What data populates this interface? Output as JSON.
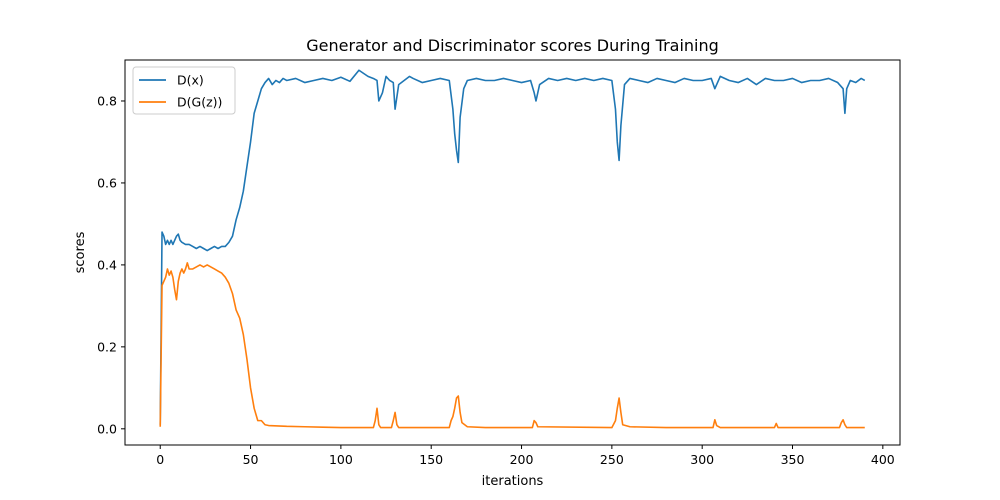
{
  "chart_data": {
    "type": "line",
    "title": "Generator and Discriminator scores During Training",
    "xlabel": "iterations",
    "ylabel": "scores",
    "xlim": [
      -19.5,
      409.5
    ],
    "ylim": [
      -0.0395,
      0.9
    ],
    "x_ticks": [
      0,
      50,
      100,
      150,
      200,
      250,
      300,
      350,
      400
    ],
    "y_ticks": [
      0.0,
      0.2,
      0.4,
      0.6,
      0.8
    ],
    "x_tick_labels": [
      "0",
      "50",
      "100",
      "150",
      "200",
      "250",
      "300",
      "350",
      "400"
    ],
    "y_tick_labels": [
      "0.0",
      "0.2",
      "0.4",
      "0.6",
      "0.8"
    ],
    "grid": false,
    "legend_position": "top-left",
    "series": [
      {
        "name": "D(x)",
        "color": "#1f77b4",
        "points": [
          [
            0,
            0.01
          ],
          [
            1,
            0.48
          ],
          [
            2,
            0.47
          ],
          [
            3,
            0.45
          ],
          [
            4,
            0.46
          ],
          [
            5,
            0.45
          ],
          [
            6,
            0.46
          ],
          [
            7,
            0.45
          ],
          [
            8,
            0.46
          ],
          [
            9,
            0.47
          ],
          [
            10,
            0.475
          ],
          [
            11,
            0.46
          ],
          [
            12,
            0.455
          ],
          [
            14,
            0.45
          ],
          [
            16,
            0.45
          ],
          [
            18,
            0.445
          ],
          [
            20,
            0.44
          ],
          [
            22,
            0.445
          ],
          [
            24,
            0.44
          ],
          [
            26,
            0.435
          ],
          [
            28,
            0.44
          ],
          [
            30,
            0.445
          ],
          [
            32,
            0.44
          ],
          [
            34,
            0.445
          ],
          [
            36,
            0.445
          ],
          [
            38,
            0.455
          ],
          [
            40,
            0.47
          ],
          [
            42,
            0.51
          ],
          [
            44,
            0.54
          ],
          [
            46,
            0.58
          ],
          [
            48,
            0.64
          ],
          [
            50,
            0.7
          ],
          [
            52,
            0.77
          ],
          [
            54,
            0.8
          ],
          [
            56,
            0.83
          ],
          [
            58,
            0.845
          ],
          [
            60,
            0.855
          ],
          [
            62,
            0.84
          ],
          [
            64,
            0.85
          ],
          [
            66,
            0.845
          ],
          [
            68,
            0.855
          ],
          [
            70,
            0.85
          ],
          [
            75,
            0.855
          ],
          [
            80,
            0.845
          ],
          [
            85,
            0.85
          ],
          [
            90,
            0.855
          ],
          [
            95,
            0.85
          ],
          [
            100,
            0.858
          ],
          [
            105,
            0.848
          ],
          [
            110,
            0.875
          ],
          [
            115,
            0.86
          ],
          [
            118,
            0.855
          ],
          [
            120,
            0.85
          ],
          [
            121,
            0.8
          ],
          [
            123,
            0.82
          ],
          [
            125,
            0.86
          ],
          [
            127,
            0.85
          ],
          [
            129,
            0.845
          ],
          [
            130,
            0.78
          ],
          [
            132,
            0.84
          ],
          [
            135,
            0.85
          ],
          [
            138,
            0.86
          ],
          [
            140,
            0.855
          ],
          [
            145,
            0.845
          ],
          [
            150,
            0.85
          ],
          [
            155,
            0.855
          ],
          [
            160,
            0.85
          ],
          [
            162,
            0.78
          ],
          [
            163,
            0.72
          ],
          [
            164,
            0.68
          ],
          [
            165,
            0.65
          ],
          [
            166,
            0.76
          ],
          [
            168,
            0.83
          ],
          [
            170,
            0.85
          ],
          [
            175,
            0.855
          ],
          [
            180,
            0.85
          ],
          [
            185,
            0.85
          ],
          [
            190,
            0.855
          ],
          [
            195,
            0.85
          ],
          [
            200,
            0.845
          ],
          [
            205,
            0.85
          ],
          [
            207,
            0.82
          ],
          [
            208,
            0.8
          ],
          [
            210,
            0.84
          ],
          [
            215,
            0.855
          ],
          [
            220,
            0.85
          ],
          [
            225,
            0.855
          ],
          [
            230,
            0.85
          ],
          [
            235,
            0.855
          ],
          [
            240,
            0.85
          ],
          [
            245,
            0.855
          ],
          [
            250,
            0.85
          ],
          [
            252,
            0.78
          ],
          [
            253,
            0.7
          ],
          [
            254,
            0.655
          ],
          [
            255,
            0.74
          ],
          [
            257,
            0.84
          ],
          [
            260,
            0.855
          ],
          [
            265,
            0.85
          ],
          [
            270,
            0.845
          ],
          [
            275,
            0.855
          ],
          [
            280,
            0.85
          ],
          [
            285,
            0.845
          ],
          [
            290,
            0.855
          ],
          [
            295,
            0.85
          ],
          [
            300,
            0.85
          ],
          [
            305,
            0.855
          ],
          [
            307,
            0.83
          ],
          [
            310,
            0.86
          ],
          [
            315,
            0.85
          ],
          [
            320,
            0.845
          ],
          [
            325,
            0.855
          ],
          [
            330,
            0.84
          ],
          [
            335,
            0.855
          ],
          [
            340,
            0.85
          ],
          [
            345,
            0.85
          ],
          [
            350,
            0.855
          ],
          [
            355,
            0.845
          ],
          [
            360,
            0.85
          ],
          [
            365,
            0.85
          ],
          [
            370,
            0.855
          ],
          [
            375,
            0.845
          ],
          [
            378,
            0.83
          ],
          [
            379,
            0.77
          ],
          [
            380,
            0.83
          ],
          [
            382,
            0.85
          ],
          [
            385,
            0.845
          ],
          [
            388,
            0.855
          ],
          [
            390,
            0.85
          ]
        ]
      },
      {
        "name": "D(G(z))",
        "color": "#ff7f0e",
        "points": [
          [
            0,
            0.005
          ],
          [
            1,
            0.35
          ],
          [
            2,
            0.36
          ],
          [
            3,
            0.37
          ],
          [
            4,
            0.39
          ],
          [
            5,
            0.375
          ],
          [
            6,
            0.385
          ],
          [
            7,
            0.37
          ],
          [
            8,
            0.34
          ],
          [
            9,
            0.315
          ],
          [
            10,
            0.36
          ],
          [
            11,
            0.38
          ],
          [
            12,
            0.39
          ],
          [
            13,
            0.38
          ],
          [
            14,
            0.39
          ],
          [
            15,
            0.405
          ],
          [
            16,
            0.39
          ],
          [
            18,
            0.39
          ],
          [
            20,
            0.395
          ],
          [
            22,
            0.4
          ],
          [
            24,
            0.395
          ],
          [
            26,
            0.4
          ],
          [
            28,
            0.395
          ],
          [
            30,
            0.39
          ],
          [
            32,
            0.385
          ],
          [
            34,
            0.38
          ],
          [
            36,
            0.37
          ],
          [
            38,
            0.355
          ],
          [
            40,
            0.33
          ],
          [
            42,
            0.29
          ],
          [
            44,
            0.27
          ],
          [
            46,
            0.23
          ],
          [
            48,
            0.17
          ],
          [
            50,
            0.1
          ],
          [
            52,
            0.05
          ],
          [
            54,
            0.02
          ],
          [
            56,
            0.02
          ],
          [
            58,
            0.01
          ],
          [
            60,
            0.008
          ],
          [
            65,
            0.007
          ],
          [
            70,
            0.006
          ],
          [
            80,
            0.005
          ],
          [
            90,
            0.004
          ],
          [
            100,
            0.003
          ],
          [
            110,
            0.003
          ],
          [
            118,
            0.003
          ],
          [
            119,
            0.02
          ],
          [
            120,
            0.05
          ],
          [
            121,
            0.01
          ],
          [
            122,
            0.003
          ],
          [
            128,
            0.003
          ],
          [
            129,
            0.02
          ],
          [
            130,
            0.04
          ],
          [
            131,
            0.01
          ],
          [
            132,
            0.003
          ],
          [
            160,
            0.003
          ],
          [
            161,
            0.02
          ],
          [
            162,
            0.03
          ],
          [
            163,
            0.05
          ],
          [
            164,
            0.075
          ],
          [
            165,
            0.08
          ],
          [
            166,
            0.04
          ],
          [
            167,
            0.015
          ],
          [
            170,
            0.005
          ],
          [
            180,
            0.003
          ],
          [
            200,
            0.003
          ],
          [
            206,
            0.003
          ],
          [
            207,
            0.02
          ],
          [
            208,
            0.015
          ],
          [
            209,
            0.005
          ],
          [
            250,
            0.003
          ],
          [
            252,
            0.02
          ],
          [
            253,
            0.05
          ],
          [
            254,
            0.075
          ],
          [
            255,
            0.04
          ],
          [
            256,
            0.01
          ],
          [
            260,
            0.005
          ],
          [
            280,
            0.003
          ],
          [
            306,
            0.003
          ],
          [
            307,
            0.022
          ],
          [
            308,
            0.008
          ],
          [
            310,
            0.003
          ],
          [
            340,
            0.003
          ],
          [
            341,
            0.013
          ],
          [
            342,
            0.003
          ],
          [
            376,
            0.003
          ],
          [
            377,
            0.015
          ],
          [
            378,
            0.022
          ],
          [
            379,
            0.01
          ],
          [
            380,
            0.003
          ],
          [
            390,
            0.003
          ]
        ]
      }
    ]
  }
}
